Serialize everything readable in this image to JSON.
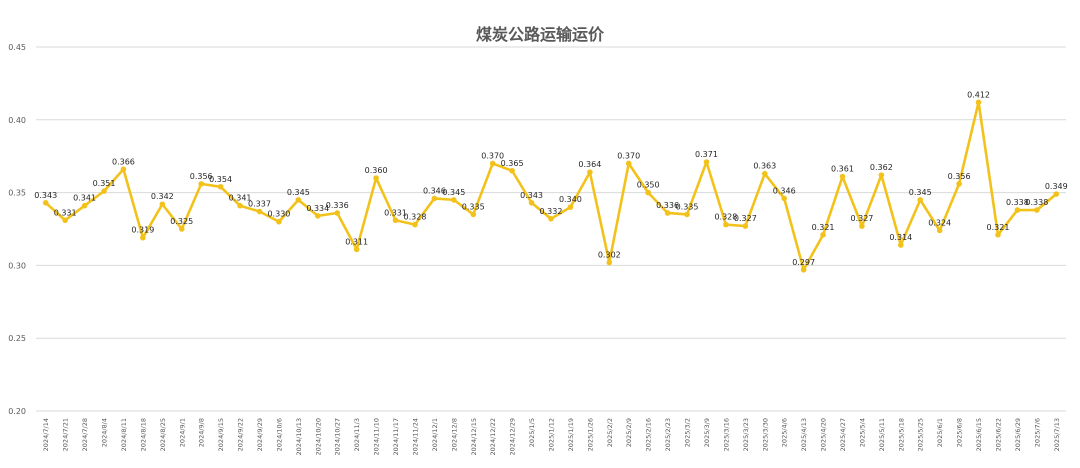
{
  "chart_data": {
    "type": "line",
    "title": "煤炭公路运输运价",
    "xlabel": "",
    "ylabel": "",
    "ylim": [
      0.2,
      0.45
    ],
    "y_ticks": [
      "0.20",
      "0.25",
      "0.30",
      "0.35",
      "0.40",
      "0.45"
    ],
    "grid": true,
    "legend": "none",
    "line_color": "#F2C21B",
    "categories": [
      "2024/7/14",
      "2024/7/21",
      "2024/7/28",
      "2024/8/4",
      "2024/8/11",
      "2024/8/18",
      "2024/8/25",
      "2024/9/1",
      "2024/9/8",
      "2024/9/15",
      "2024/9/22",
      "2024/9/29",
      "2024/10/6",
      "2024/10/13",
      "2024/10/20",
      "2024/10/27",
      "2024/11/3",
      "2024/11/10",
      "2024/11/17",
      "2024/11/24",
      "2024/12/1",
      "2024/12/8",
      "2024/12/15",
      "2024/12/22",
      "2024/12/29",
      "2025/1/5",
      "2025/1/12",
      "2025/1/19",
      "2025/1/26",
      "2025/2/2",
      "2025/2/9",
      "2025/2/16",
      "2025/2/23",
      "2025/3/2",
      "2025/3/9",
      "2025/3/16",
      "2025/3/23",
      "2025/3/30",
      "2025/4/6",
      "2025/4/13",
      "2025/4/20",
      "2025/4/27",
      "2025/5/4",
      "2025/5/11",
      "2025/5/18",
      "2025/5/25",
      "2025/6/1",
      "2025/6/8",
      "2025/6/15",
      "2025/6/22",
      "2025/6/29",
      "2025/7/6",
      "2025/7/13"
    ],
    "values": [
      0.343,
      0.331,
      0.341,
      0.351,
      0.366,
      0.319,
      0.342,
      0.325,
      0.356,
      0.354,
      0.341,
      0.337,
      0.33,
      0.345,
      0.334,
      0.336,
      0.311,
      0.36,
      0.331,
      0.328,
      0.346,
      0.345,
      0.335,
      0.37,
      0.365,
      0.343,
      0.332,
      0.34,
      0.364,
      0.302,
      0.37,
      0.35,
      0.336,
      0.335,
      0.371,
      0.328,
      0.327,
      0.363,
      0.346,
      0.297,
      0.321,
      0.361,
      0.327,
      0.362,
      0.314,
      0.345,
      0.324,
      0.356,
      0.412,
      0.321,
      0.338,
      0.338,
      0.349
    ],
    "data_labels": [
      "0.343",
      "0.331",
      "0.341",
      "0.351",
      "0.366",
      "0.319",
      "0.342",
      "0.325",
      "0.356",
      "0.354",
      "0.341",
      "0.337",
      "0.330",
      "0.345",
      "0.334",
      "0.336",
      "0.311",
      "0.360",
      "0.331",
      "0.328",
      "0.346",
      "0.345",
      "0.335",
      "0.370",
      "0.365",
      "0.343",
      "0.332",
      "0.340",
      "0.364",
      "0.302",
      "0.370",
      "0.350",
      "0.336",
      "0.335",
      "0.371",
      "0.328",
      "0.327",
      "0.363",
      "0.346",
      "0.297",
      "0.321",
      "0.361",
      "0.327",
      "0.362",
      "0.314",
      "0.345",
      "0.324",
      "0.356",
      "0.412",
      "0.321",
      "0.338",
      "0.338",
      "0.349"
    ]
  }
}
